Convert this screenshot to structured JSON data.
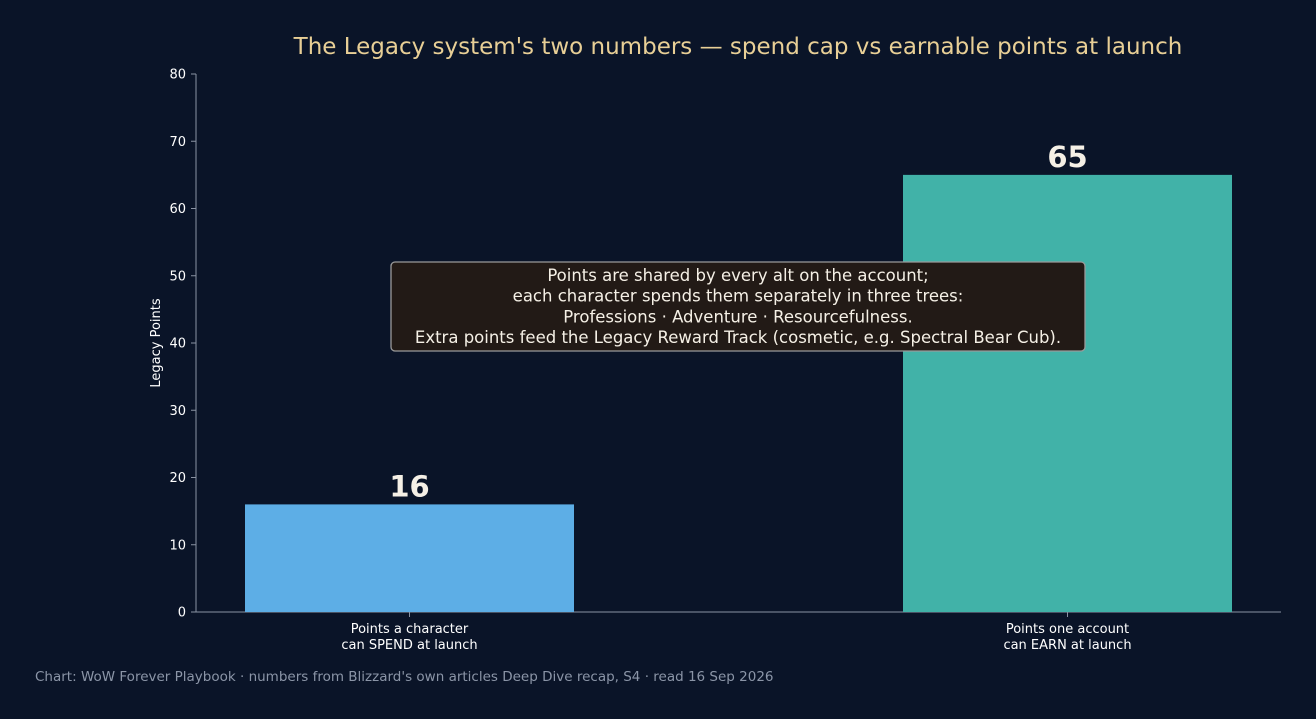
{
  "chart_data": {
    "type": "bar",
    "title": "The Legacy system's two numbers — spend cap vs earnable points at launch",
    "ylabel": "Legacy Points",
    "xlabel": "",
    "ylim": [
      0,
      80
    ],
    "yticks": [
      0,
      10,
      20,
      30,
      40,
      50,
      60,
      70,
      80
    ],
    "grid": false,
    "categories": [
      [
        "Points a character",
        "can SPEND at launch"
      ],
      [
        "Points one account",
        "can EARN at launch"
      ]
    ],
    "values": [
      16,
      65
    ],
    "value_labels": [
      "16",
      "65"
    ],
    "colors": [
      "#5daee6",
      "#41b2a8"
    ],
    "annotation": {
      "lines": [
        "Points are shared by every alt on the account;",
        "each character spends them separately in three trees:",
        "Professions · Adventure · Resourcefulness.",
        "Extra points feed the Legacy Reward Track (cosmetic, e.g. Spectral Bear Cub)."
      ],
      "box_fill": "#221a16",
      "box_stroke": "#9a9a9a"
    }
  },
  "footer": {
    "source": "Chart: WoW Forever Playbook · numbers from Blizzard's own articles Deep Dive recap, S4 · read 16 Sep 2026"
  },
  "colors": {
    "background": "#0a1428",
    "title": "#e8cf96",
    "axis": "#8a93a3",
    "text": "#ffffff",
    "footer": "#8b95a7"
  }
}
